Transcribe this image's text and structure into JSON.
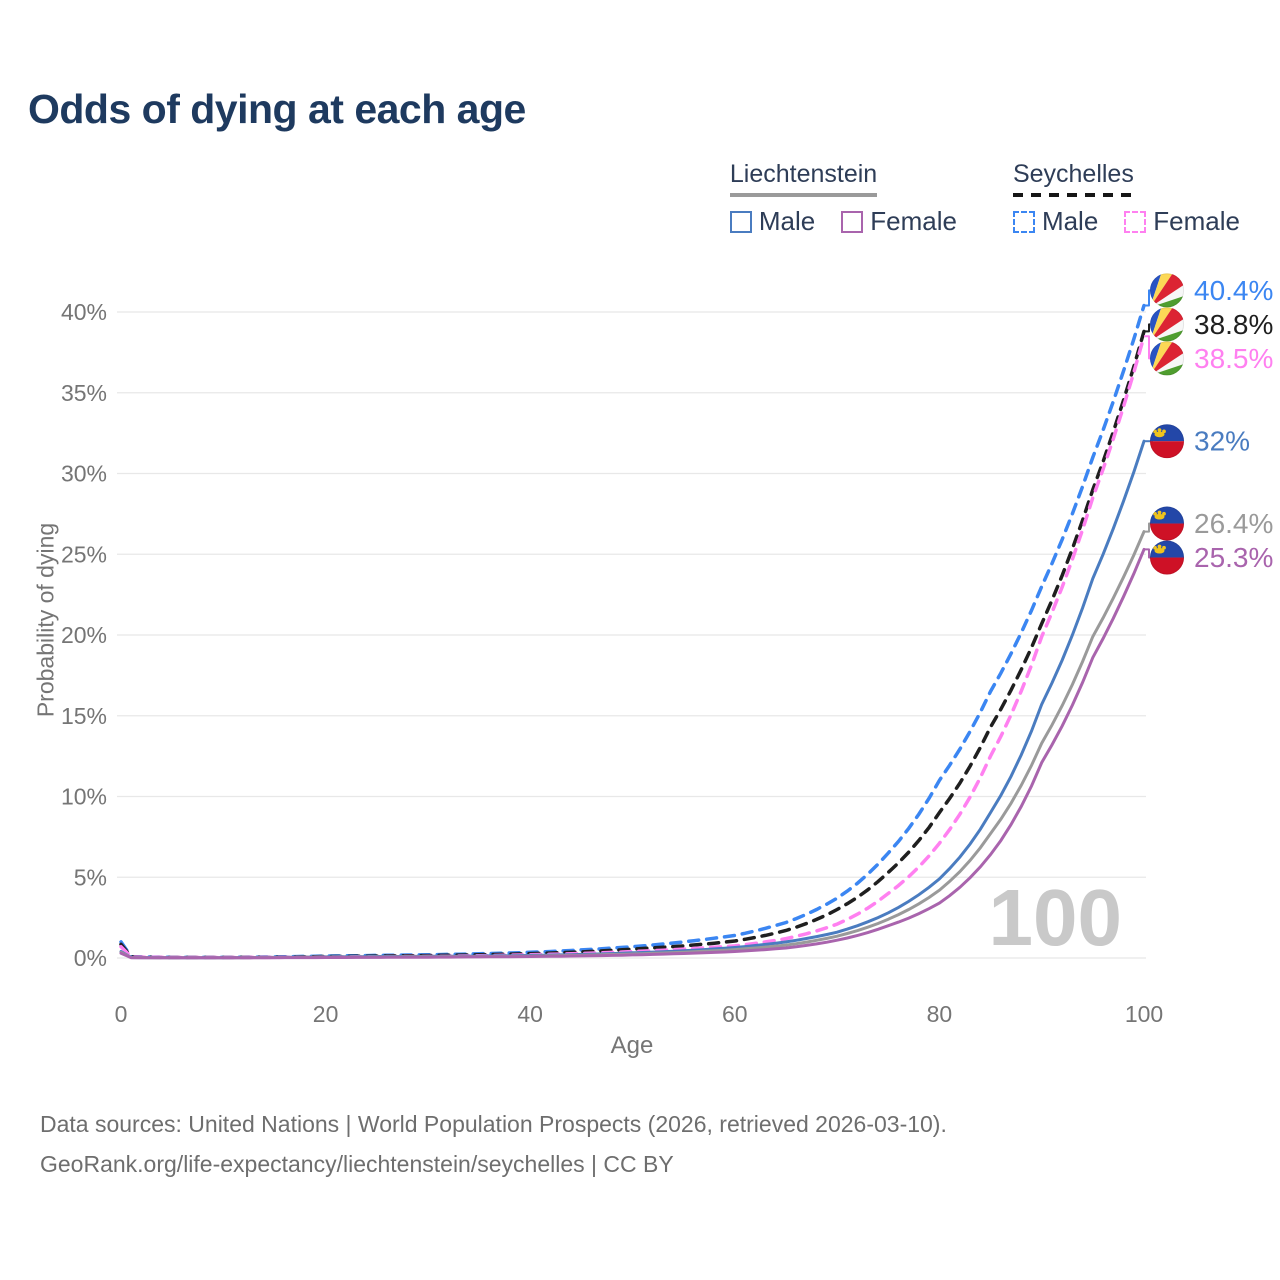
{
  "title": "Odds of dying at each age",
  "age_indicator": "100",
  "legend": {
    "groups": [
      {
        "country": "Liechtenstein",
        "style": "solid",
        "underline_color": "#9a9a9a",
        "items": [
          {
            "label": "Male",
            "color": "#4a7cc0"
          },
          {
            "label": "Female",
            "color": "#a964ad"
          }
        ]
      },
      {
        "country": "Seychelles",
        "style": "dashed",
        "underline_color": "#161616",
        "items": [
          {
            "label": "Male",
            "color": "#3b86f2"
          },
          {
            "label": "Female",
            "color": "#ff80f0"
          }
        ]
      }
    ]
  },
  "chart_data": {
    "type": "line",
    "title": "Odds of dying at each age",
    "xlabel": "Age",
    "ylabel": "Probability of dying",
    "x_ticks": [
      "0",
      "20",
      "40",
      "60",
      "80",
      "100"
    ],
    "y_ticks": [
      "0%",
      "5%",
      "10%",
      "15%",
      "20%",
      "25%",
      "30%",
      "35%",
      "40%"
    ],
    "xlim": [
      0,
      100
    ],
    "ylim_percent": [
      0,
      42
    ],
    "grid": "horizontal",
    "legend_position": "top-right",
    "values_unit": "percent",
    "ages": [
      0,
      1,
      5,
      10,
      15,
      20,
      25,
      30,
      35,
      40,
      45,
      50,
      55,
      60,
      65,
      70,
      75,
      80,
      85,
      90,
      95,
      100
    ],
    "series": [
      {
        "name": "Seychelles Male",
        "country": "Seychelles",
        "sex": "male",
        "color": "#3b86f2",
        "line_style": "dashed",
        "flag": "seychelles",
        "end_label": "40.4%",
        "values": [
          1.0,
          0.08,
          0.04,
          0.04,
          0.07,
          0.12,
          0.16,
          0.2,
          0.26,
          0.35,
          0.5,
          0.7,
          1.0,
          1.4,
          2.2,
          3.7,
          6.5,
          11.0,
          16.5,
          23.0,
          31.0,
          40.4
        ]
      },
      {
        "name": "Seychelles Total",
        "country": "Seychelles",
        "sex": "total",
        "color": "#1f1f1f",
        "line_style": "dashed",
        "flag": "seychelles",
        "end_label": "38.8%",
        "values": [
          0.85,
          0.07,
          0.03,
          0.03,
          0.05,
          0.09,
          0.12,
          0.15,
          0.2,
          0.27,
          0.38,
          0.55,
          0.75,
          1.05,
          1.7,
          3.0,
          5.3,
          9.0,
          14.3,
          20.7,
          29.0,
          38.8
        ]
      },
      {
        "name": "Seychelles Female",
        "country": "Seychelles",
        "sex": "female",
        "color": "#ff80f0",
        "line_style": "dashed",
        "flag": "seychelles",
        "end_label": "38.5%",
        "values": [
          0.7,
          0.06,
          0.03,
          0.03,
          0.04,
          0.06,
          0.08,
          0.1,
          0.14,
          0.2,
          0.28,
          0.4,
          0.55,
          0.75,
          1.2,
          2.1,
          4.0,
          7.1,
          12.5,
          19.9,
          28.5,
          38.5
        ]
      },
      {
        "name": "Liechtenstein Male",
        "country": "Liechtenstein",
        "sex": "male",
        "color": "#4a7cc0",
        "line_style": "solid",
        "flag": "liechtenstein",
        "end_label": "32%",
        "values": [
          0.4,
          0.03,
          0.02,
          0.02,
          0.04,
          0.07,
          0.09,
          0.1,
          0.12,
          0.16,
          0.22,
          0.32,
          0.45,
          0.65,
          1.0,
          1.6,
          2.8,
          4.9,
          9.0,
          15.7,
          23.5,
          32.0
        ]
      },
      {
        "name": "Liechtenstein Total",
        "country": "Liechtenstein",
        "sex": "total",
        "color": "#9a9a9a",
        "line_style": "solid",
        "flag": "liechtenstein",
        "end_label": "26.4%",
        "values": [
          0.35,
          0.03,
          0.015,
          0.015,
          0.03,
          0.05,
          0.06,
          0.08,
          0.09,
          0.12,
          0.17,
          0.25,
          0.36,
          0.52,
          0.8,
          1.35,
          2.4,
          4.2,
          7.7,
          13.3,
          19.9,
          26.4
        ]
      },
      {
        "name": "Liechtenstein Female",
        "country": "Liechtenstein",
        "sex": "female",
        "color": "#a964ad",
        "line_style": "solid",
        "flag": "liechtenstein",
        "end_label": "25.3%",
        "values": [
          0.3,
          0.02,
          0.01,
          0.01,
          0.02,
          0.03,
          0.04,
          0.05,
          0.07,
          0.09,
          0.13,
          0.19,
          0.28,
          0.4,
          0.62,
          1.1,
          2.0,
          3.4,
          6.4,
          12.1,
          18.6,
          25.3
        ]
      }
    ],
    "flag_colors": {
      "seychelles": {
        "blue": "#2853c3",
        "yellow": "#fcd856",
        "red": "#dc2433",
        "white": "#f7f7f7",
        "green": "#4f9d2f"
      },
      "liechtenstein": {
        "blue": "#2347a8",
        "red": "#ce1126",
        "gold": "#f0c41d"
      }
    },
    "style_colors": {
      "grid": "#e8e8e8",
      "axis_text": "#757575",
      "title_text": "#1e3a5f",
      "watermark": "#c9c9c9",
      "footer_text": "#6e6e6e"
    }
  },
  "footer": {
    "line1": "Data sources: United Nations | World Population Prospects (2026, retrieved 2026-03-10).",
    "line2": "GeoRank.org/life-expectancy/liechtenstein/seychelles | CC BY"
  }
}
